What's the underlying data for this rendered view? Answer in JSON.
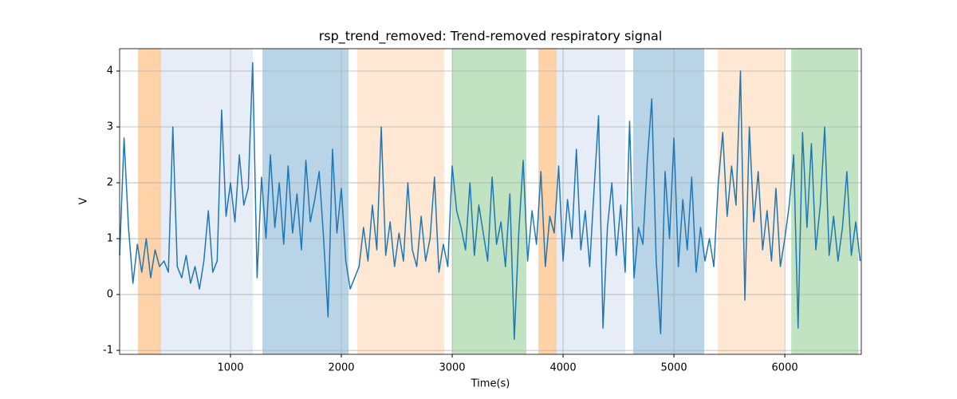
{
  "chart_data": {
    "type": "line",
    "title": "rsp_trend_removed: Trend-removed respiratory signal",
    "x_label": "Time(s)",
    "y_label": "V",
    "xlim": [
      0,
      6690
    ],
    "ylim": [
      -1.07,
      4.4
    ],
    "xticks": [
      1000,
      2000,
      3000,
      4000,
      5000,
      6000
    ],
    "yticks": [
      -1,
      0,
      1,
      2,
      3,
      4
    ],
    "grid": true,
    "spans": [
      {
        "start": 165,
        "end": 374,
        "color": "#ffd2a8"
      },
      {
        "start": 374,
        "end": 1201,
        "color": "#e6edf7"
      },
      {
        "start": 1288,
        "end": 2065,
        "color": "#b9d3e7"
      },
      {
        "start": 2144,
        "end": 2928,
        "color": "#fee8d3"
      },
      {
        "start": 3000,
        "end": 3669,
        "color": "#c1e3c1"
      },
      {
        "start": 3777,
        "end": 3942,
        "color": "#ffd2a8"
      },
      {
        "start": 3942,
        "end": 4561,
        "color": "#e6edf7"
      },
      {
        "start": 4633,
        "end": 5273,
        "color": "#b9d3e7"
      },
      {
        "start": 5396,
        "end": 5993,
        "color": "#fee8d3"
      },
      {
        "start": 6058,
        "end": 6662,
        "color": "#c1e3c1"
      }
    ],
    "x": [
      0,
      40,
      80,
      120,
      160,
      200,
      240,
      280,
      320,
      360,
      400,
      440,
      480,
      520,
      560,
      600,
      640,
      680,
      720,
      760,
      800,
      840,
      880,
      920,
      960,
      1000,
      1040,
      1080,
      1120,
      1160,
      1200,
      1240,
      1280,
      1320,
      1360,
      1400,
      1440,
      1480,
      1520,
      1560,
      1600,
      1640,
      1680,
      1720,
      1760,
      1800,
      1840,
      1880,
      1920,
      1960,
      2000,
      2040,
      2080,
      2120,
      2160,
      2200,
      2240,
      2280,
      2320,
      2360,
      2400,
      2440,
      2480,
      2520,
      2560,
      2600,
      2640,
      2680,
      2720,
      2760,
      2800,
      2840,
      2880,
      2920,
      2960,
      3000,
      3040,
      3080,
      3120,
      3160,
      3200,
      3240,
      3280,
      3320,
      3360,
      3400,
      3440,
      3480,
      3520,
      3560,
      3600,
      3640,
      3680,
      3720,
      3760,
      3800,
      3840,
      3880,
      3920,
      3960,
      4000,
      4040,
      4080,
      4120,
      4160,
      4200,
      4240,
      4280,
      4320,
      4360,
      4400,
      4440,
      4480,
      4520,
      4560,
      4600,
      4640,
      4680,
      4720,
      4760,
      4800,
      4840,
      4880,
      4920,
      4960,
      5000,
      5040,
      5080,
      5120,
      5160,
      5200,
      5240,
      5280,
      5320,
      5360,
      5400,
      5440,
      5480,
      5520,
      5560,
      5600,
      5640,
      5680,
      5720,
      5760,
      5800,
      5840,
      5880,
      5920,
      5960,
      6000,
      6040,
      6080,
      6120,
      6160,
      6200,
      6240,
      6280,
      6320,
      6360,
      6400,
      6440,
      6480,
      6520,
      6560,
      6600,
      6640,
      6680
    ],
    "series": [
      {
        "color": "#1f77b4",
        "values": [
          0.7,
          2.8,
          1.2,
          0.2,
          0.9,
          0.4,
          1.0,
          0.3,
          0.8,
          0.5,
          0.6,
          0.4,
          3.0,
          0.5,
          0.3,
          0.7,
          0.2,
          0.5,
          0.1,
          0.6,
          1.5,
          0.4,
          0.6,
          3.3,
          1.4,
          2.0,
          1.3,
          2.5,
          1.6,
          1.9,
          4.15,
          0.3,
          2.1,
          1.0,
          2.5,
          1.2,
          2.0,
          0.9,
          2.3,
          1.1,
          1.8,
          0.8,
          2.4,
          1.3,
          1.7,
          2.2,
          1.0,
          -0.4,
          2.6,
          1.1,
          1.9,
          0.6,
          0.1,
          0.3,
          0.5,
          1.2,
          0.6,
          1.6,
          0.8,
          3.0,
          0.7,
          1.3,
          0.5,
          1.1,
          0.6,
          2.0,
          0.8,
          0.5,
          1.4,
          0.6,
          1.0,
          2.1,
          0.4,
          0.9,
          0.5,
          2.3,
          1.5,
          1.2,
          0.8,
          2.0,
          0.7,
          1.6,
          1.1,
          0.6,
          2.1,
          0.9,
          1.3,
          0.5,
          1.8,
          -0.8,
          1.1,
          2.4,
          0.6,
          1.5,
          0.9,
          2.2,
          0.5,
          1.4,
          1.1,
          2.3,
          0.6,
          1.7,
          1.0,
          2.6,
          0.8,
          1.5,
          0.5,
          1.9,
          3.2,
          -0.6,
          1.2,
          2.0,
          0.7,
          1.6,
          0.4,
          3.1,
          0.3,
          1.2,
          0.9,
          2.4,
          3.5,
          0.6,
          -0.7,
          2.2,
          1.0,
          2.8,
          0.5,
          1.7,
          0.8,
          2.1,
          0.4,
          1.2,
          0.6,
          1.0,
          0.5,
          2.0,
          2.9,
          1.4,
          2.3,
          1.6,
          4.0,
          -0.1,
          3.0,
          1.3,
          2.2,
          0.8,
          1.5,
          0.6,
          1.9,
          0.5,
          1.0,
          1.6,
          2.5,
          -0.6,
          2.9,
          1.2,
          2.7,
          0.8,
          1.6,
          3.0,
          0.7,
          1.4,
          0.6,
          1.2,
          2.2,
          0.7,
          1.3,
          0.6
        ]
      }
    ]
  }
}
